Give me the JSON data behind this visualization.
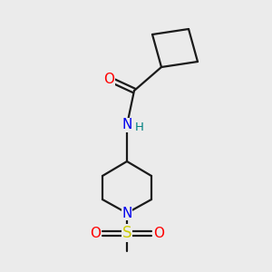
{
  "background_color": "#ebebeb",
  "bond_color": "#1a1a1a",
  "atom_colors": {
    "O": "#ff0000",
    "N": "#0000ee",
    "S": "#cccc00",
    "H": "#008080",
    "C": "#1a1a1a"
  },
  "figsize": [
    3.0,
    3.0
  ],
  "dpi": 100,
  "bond_lw": 1.6,
  "font_size": 11
}
